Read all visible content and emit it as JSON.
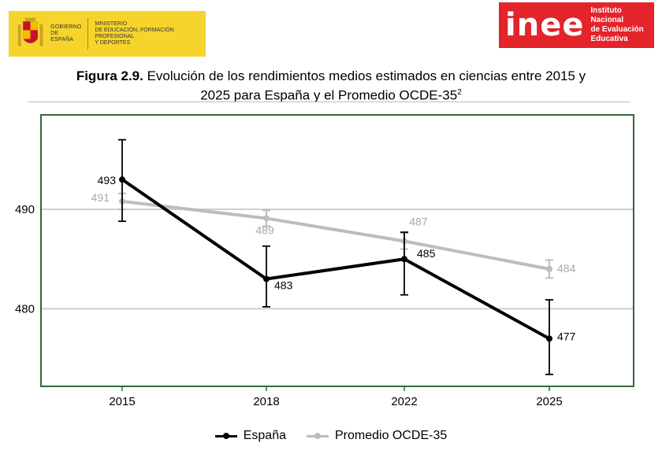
{
  "header": {
    "gov_line1": "GOBIERNO",
    "gov_line2": "DE ESPAÑA",
    "ministry_line1": "MINISTERIO",
    "ministry_line2": "DE EDUCACIÓN, FORMACIÓN PROFESIONAL",
    "ministry_line3": "Y DEPORTES",
    "inee_word": "inee",
    "inee_line1": "Instituto Nacional",
    "inee_line2": "de Evaluación",
    "inee_line3": "Educativa"
  },
  "figure": {
    "label": "Figura 2.9.",
    "title_line1": " Evolución de los rendimientos medios estimados en ciencias entre 2015 y",
    "title_line2": "2025 para España y el Promedio OCDE-35",
    "title_sup": "2"
  },
  "colors": {
    "espana": "#000000",
    "ocde": "#bdbdbd",
    "frame": "#2f6a3a",
    "gridline": "#d0d0c8",
    "logo_yellow": "#f6d42c",
    "inee_red": "#e3242b"
  },
  "chart_data": {
    "type": "line",
    "x": [
      "2015",
      "2018",
      "2022",
      "2025"
    ],
    "series": [
      {
        "name": "España",
        "values": [
          493,
          483,
          485,
          477
        ],
        "ci_low": [
          488.8,
          480.2,
          481.4,
          473.4
        ],
        "ci_high": [
          497.0,
          486.3,
          487.7,
          480.9
        ],
        "labels": [
          "493",
          "483",
          "485",
          "477"
        ],
        "color": "#000000"
      },
      {
        "name": "Promedio OCDE-35",
        "values": [
          490.8,
          489.1,
          486.8,
          484.0
        ],
        "ci_low": [
          490.0,
          488.3,
          486.0,
          483.1
        ],
        "ci_high": [
          491.6,
          489.9,
          487.6,
          484.9
        ],
        "labels": [
          "491",
          "489",
          "487",
          "484"
        ],
        "color": "#bdbdbd"
      }
    ],
    "yticks": [
      480,
      490
    ],
    "ylim": [
      472.2,
      499.5
    ],
    "grid": true,
    "legend": "bottom"
  }
}
